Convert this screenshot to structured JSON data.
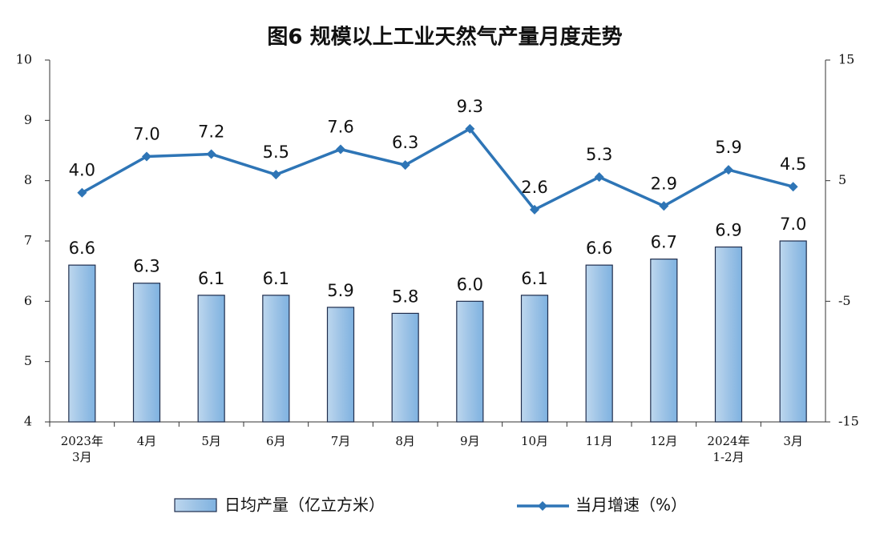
{
  "chart_data": {
    "type": "bar_line",
    "title": "图6  规模以上工业天然气产量月度走势",
    "categories": [
      "2023年\n3月",
      "4月",
      "5月",
      "6月",
      "7月",
      "8月",
      "9月",
      "10月",
      "11月",
      "12月",
      "2024年\n1-2月",
      "3月"
    ],
    "series": [
      {
        "name": "日均产量（亿立方米）",
        "type": "bar",
        "color": "#9dc3e6",
        "values": [
          6.6,
          6.3,
          6.1,
          6.1,
          5.9,
          5.8,
          6.0,
          6.1,
          6.6,
          6.7,
          6.9,
          7.0
        ],
        "value_labels": [
          "6.6",
          "6.3",
          "6.1",
          "6.1",
          "5.9",
          "5.8",
          "6.0",
          "6.1",
          "6.6",
          "6.7",
          "6.9",
          "7.0"
        ]
      },
      {
        "name": "当月增速（%）",
        "type": "line",
        "axis": "y2",
        "color": "#2e75b6",
        "values": [
          4.0,
          7.0,
          7.2,
          5.5,
          7.6,
          6.3,
          9.3,
          2.6,
          5.3,
          2.9,
          5.9,
          4.5
        ],
        "value_labels": [
          "4.0",
          "7.0",
          "7.2",
          "5.5",
          "7.6",
          "6.3",
          "9.3",
          "2.6",
          "5.3",
          "2.9",
          "5.9",
          "4.5"
        ]
      }
    ],
    "ylim": [
      4,
      10
    ],
    "yticks": [
      4,
      5,
      6,
      7,
      8,
      9,
      10
    ],
    "y2lim": [
      -15,
      15
    ],
    "y2ticks": [
      -15,
      -5,
      5,
      15
    ]
  }
}
